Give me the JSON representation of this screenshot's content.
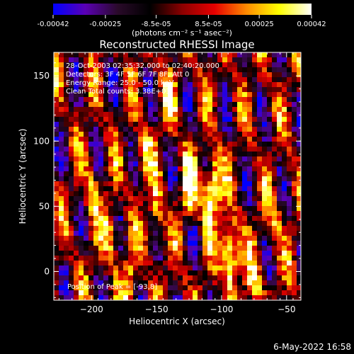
{
  "colorbar": {
    "tick_labels": [
      "-0.00042",
      "-0.00025",
      "-8.5e-05",
      "8.5e-05",
      "0.00025",
      "0.00042"
    ],
    "tick_values": [
      -0.00042,
      -0.00025,
      -8.5e-05,
      8.5e-05,
      0.00025,
      0.00042
    ],
    "range": [
      -0.00042,
      0.00042
    ],
    "unit_label": "(photons cm⁻² s⁻¹ asec⁻²)",
    "colors": [
      "#0000ff",
      "#5a00b4",
      "#2a0a2a",
      "#000000",
      "#8c0000",
      "#e60000",
      "#ff8c00",
      "#ffff00",
      "#ffffff"
    ]
  },
  "info": {
    "line1": "28-Oct-2003 02:35:32.000 to 02:40:20.000",
    "line2": "Detectors: 3F 4F 5F 6F 7F 8F, Att 0",
    "line3": "Energy Range: 25.0 - 50.0 keV",
    "line4": "Clean     Total counts: 3.38E+03"
  },
  "peak_label": "Position of Peak = [-93,8]",
  "timestamp": "6-May-2022 16:58",
  "chart_data": {
    "type": "heatmap",
    "title": "Reconstructed RHESSI Image",
    "xlabel": "Heliocentric X (arcsec)",
    "ylabel": "Heliocentric Y (arcsec)",
    "xlim": [
      -229,
      -39
    ],
    "ylim": [
      -22,
      168
    ],
    "xticks": [
      -200,
      -150,
      -100,
      -50
    ],
    "yticks": [
      0,
      50,
      100,
      150
    ],
    "peak": [
      -93,
      8
    ],
    "blobs": [
      {
        "x": -125,
        "y": 65,
        "v": 1.0
      },
      {
        "x": -110,
        "y": 55,
        "v": 0.95
      },
      {
        "x": -105,
        "y": 70,
        "v": 0.9
      },
      {
        "x": -150,
        "y": 45,
        "v": 0.75
      },
      {
        "x": -160,
        "y": 90,
        "v": 0.7
      },
      {
        "x": -185,
        "y": 30,
        "v": 0.7
      },
      {
        "x": -95,
        "y": 20,
        "v": 0.85
      },
      {
        "x": -92,
        "y": 8,
        "v": 1.0
      },
      {
        "x": -75,
        "y": -10,
        "v": 0.7
      },
      {
        "x": -200,
        "y": 60,
        "v": 0.55
      },
      {
        "x": -140,
        "y": 130,
        "v": 0.5
      },
      {
        "x": -170,
        "y": -5,
        "v": 0.65
      },
      {
        "x": -60,
        "y": 40,
        "v": 0.55
      }
    ]
  }
}
